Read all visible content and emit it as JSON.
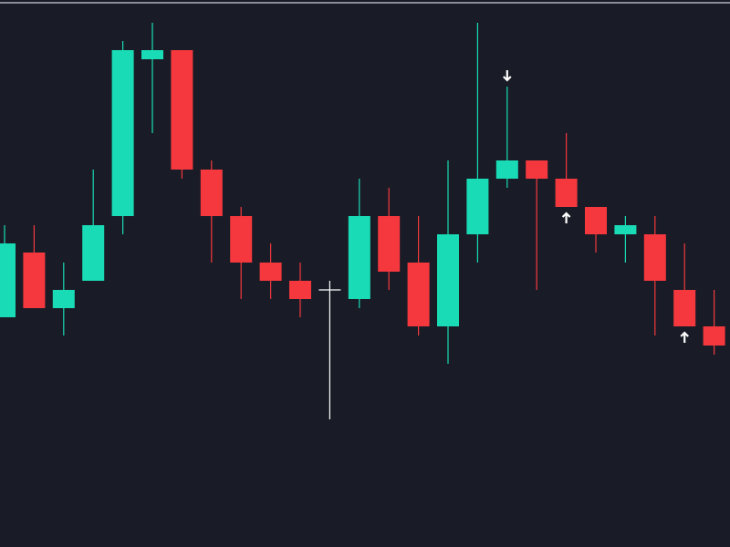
{
  "chart_data": {
    "type": "candlestick",
    "open": [
      252,
      323,
      262,
      292,
      363,
      535,
      545,
      414,
      363,
      312,
      292,
      282,
      272,
      363,
      312,
      242,
      343,
      404,
      424,
      404,
      373,
      343,
      343,
      282,
      242
    ],
    "high": [
      353,
      353,
      312,
      414,
      555,
      575,
      545,
      424,
      373,
      333,
      312,
      292,
      404,
      394,
      363,
      424,
      575,
      505,
      424,
      454,
      373,
      363,
      363,
      333,
      282
    ],
    "low": [
      252,
      262,
      232,
      292,
      343,
      454,
      404,
      312,
      272,
      272,
      252,
      140,
      262,
      282,
      232,
      201,
      312,
      394,
      282,
      373,
      323,
      312,
      232,
      242,
      211
    ],
    "close": [
      333,
      262,
      282,
      353,
      545,
      545,
      414,
      363,
      312,
      292,
      272,
      282,
      363,
      302,
      242,
      343,
      404,
      424,
      404,
      373,
      343,
      353,
      292,
      242,
      221
    ],
    "up_color": "#19dcb6",
    "down_color": "#f5383e",
    "doji_color": "#ffffff",
    "down_arrows": [
      17
    ],
    "up_arrows": [
      19,
      23
    ],
    "ylim": [
      0,
      600
    ]
  }
}
